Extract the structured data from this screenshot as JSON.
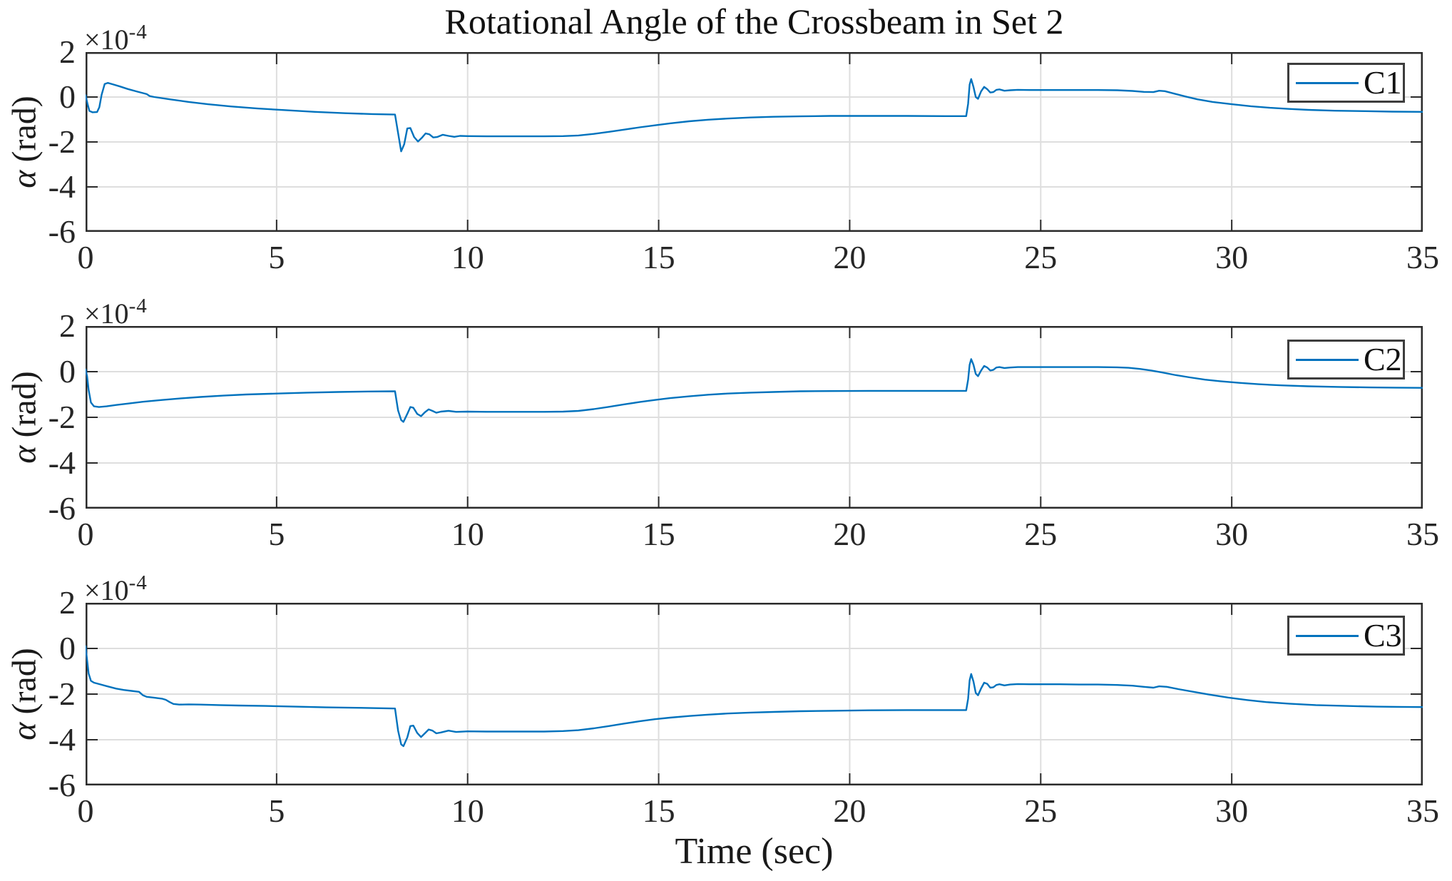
{
  "colors": {
    "line": "#0072BD",
    "grid": "#dedede",
    "axis": "#2b2b2b",
    "text": "#1a1a1a"
  },
  "chart_data": {
    "type": "line",
    "title": "Rotational Angle of the Crossbeam in Set 2",
    "xlabel": "Time (sec)",
    "ylabel": "α (rad)",
    "ylabel_parts": {
      "alpha": "α",
      "unit": "(rad)"
    },
    "y_exponent": {
      "base": "×10",
      "power": "-4"
    },
    "y_units": "values expressed in 1e-4 rad",
    "xlim": [
      0,
      35
    ],
    "ylim": [
      -6,
      2
    ],
    "xticks": [
      0,
      5,
      10,
      15,
      20,
      25,
      30,
      35
    ],
    "yticks": [
      2,
      0,
      -2,
      -4,
      -6
    ],
    "grid": true,
    "legend_position": "top-right",
    "subplots": [
      {
        "name": "C1",
        "points": [
          [
            0,
            0.08
          ],
          [
            0.05,
            -0.3
          ],
          [
            0.1,
            -0.62
          ],
          [
            0.18,
            -0.68
          ],
          [
            0.3,
            -0.67
          ],
          [
            0.36,
            -0.45
          ],
          [
            0.42,
            0.1
          ],
          [
            0.5,
            0.58
          ],
          [
            0.58,
            0.63
          ],
          [
            0.7,
            0.57
          ],
          [
            0.9,
            0.47
          ],
          [
            1.1,
            0.36
          ],
          [
            1.35,
            0.24
          ],
          [
            1.6,
            0.13
          ],
          [
            1.68,
            0.04
          ],
          [
            1.8,
            0
          ],
          [
            2.2,
            -0.1
          ],
          [
            2.7,
            -0.22
          ],
          [
            3.2,
            -0.32
          ],
          [
            3.8,
            -0.42
          ],
          [
            4.5,
            -0.51
          ],
          [
            5.2,
            -0.58
          ],
          [
            6,
            -0.66
          ],
          [
            6.8,
            -0.72
          ],
          [
            7.5,
            -0.76
          ],
          [
            8.1,
            -0.78
          ],
          [
            8.18,
            -1.6
          ],
          [
            8.26,
            -2.42
          ],
          [
            8.34,
            -2.1
          ],
          [
            8.42,
            -1.4
          ],
          [
            8.5,
            -1.38
          ],
          [
            8.6,
            -1.78
          ],
          [
            8.7,
            -1.98
          ],
          [
            8.8,
            -1.82
          ],
          [
            8.9,
            -1.62
          ],
          [
            9,
            -1.66
          ],
          [
            9.1,
            -1.8
          ],
          [
            9.2,
            -1.78
          ],
          [
            9.35,
            -1.68
          ],
          [
            9.5,
            -1.73
          ],
          [
            9.65,
            -1.77
          ],
          [
            9.8,
            -1.73
          ],
          [
            10,
            -1.74
          ],
          [
            10.5,
            -1.75
          ],
          [
            11,
            -1.75
          ],
          [
            11.5,
            -1.75
          ],
          [
            12,
            -1.75
          ],
          [
            12.5,
            -1.74
          ],
          [
            12.9,
            -1.71
          ],
          [
            13.3,
            -1.64
          ],
          [
            13.7,
            -1.55
          ],
          [
            14.1,
            -1.45
          ],
          [
            14.5,
            -1.35
          ],
          [
            14.9,
            -1.26
          ],
          [
            15.3,
            -1.17
          ],
          [
            15.8,
            -1.08
          ],
          [
            16.3,
            -1.01
          ],
          [
            16.8,
            -0.96
          ],
          [
            17.4,
            -0.91
          ],
          [
            18,
            -0.88
          ],
          [
            18.7,
            -0.86
          ],
          [
            19.5,
            -0.84
          ],
          [
            20.5,
            -0.84
          ],
          [
            21.5,
            -0.84
          ],
          [
            22.5,
            -0.85
          ],
          [
            23.05,
            -0.85
          ],
          [
            23.1,
            -0.3
          ],
          [
            23.14,
            0.55
          ],
          [
            23.18,
            0.8
          ],
          [
            23.24,
            0.45
          ],
          [
            23.3,
            0
          ],
          [
            23.36,
            -0.08
          ],
          [
            23.44,
            0.25
          ],
          [
            23.52,
            0.45
          ],
          [
            23.6,
            0.35
          ],
          [
            23.68,
            0.2
          ],
          [
            23.76,
            0.22
          ],
          [
            23.84,
            0.32
          ],
          [
            23.92,
            0.34
          ],
          [
            24.05,
            0.28
          ],
          [
            24.2,
            0.3
          ],
          [
            24.4,
            0.32
          ],
          [
            24.7,
            0.31
          ],
          [
            25,
            0.31
          ],
          [
            25.5,
            0.31
          ],
          [
            26,
            0.31
          ],
          [
            26.5,
            0.31
          ],
          [
            27,
            0.3
          ],
          [
            27.4,
            0.27
          ],
          [
            27.7,
            0.23
          ],
          [
            27.95,
            0.22
          ],
          [
            28.1,
            0.28
          ],
          [
            28.25,
            0.26
          ],
          [
            28.5,
            0.15
          ],
          [
            28.8,
            0.02
          ],
          [
            29.1,
            -0.1
          ],
          [
            29.5,
            -0.22
          ],
          [
            30,
            -0.32
          ],
          [
            30.5,
            -0.41
          ],
          [
            31,
            -0.48
          ],
          [
            31.5,
            -0.53
          ],
          [
            32,
            -0.57
          ],
          [
            32.7,
            -0.61
          ],
          [
            33.5,
            -0.63
          ],
          [
            34.2,
            -0.65
          ],
          [
            35,
            -0.66
          ]
        ]
      },
      {
        "name": "C2",
        "points": [
          [
            0,
            0.1
          ],
          [
            0.04,
            -0.2
          ],
          [
            0.08,
            -0.8
          ],
          [
            0.14,
            -1.35
          ],
          [
            0.22,
            -1.52
          ],
          [
            0.35,
            -1.55
          ],
          [
            0.55,
            -1.52
          ],
          [
            0.8,
            -1.46
          ],
          [
            1.1,
            -1.4
          ],
          [
            1.5,
            -1.32
          ],
          [
            2,
            -1.24
          ],
          [
            2.5,
            -1.17
          ],
          [
            3,
            -1.11
          ],
          [
            3.6,
            -1.05
          ],
          [
            4.2,
            -1
          ],
          [
            5,
            -0.96
          ],
          [
            5.8,
            -0.92
          ],
          [
            6.6,
            -0.89
          ],
          [
            7.4,
            -0.87
          ],
          [
            8.1,
            -0.86
          ],
          [
            8.18,
            -1.7
          ],
          [
            8.26,
            -2.12
          ],
          [
            8.32,
            -2.2
          ],
          [
            8.42,
            -1.85
          ],
          [
            8.5,
            -1.55
          ],
          [
            8.58,
            -1.58
          ],
          [
            8.68,
            -1.85
          ],
          [
            8.78,
            -1.95
          ],
          [
            8.88,
            -1.78
          ],
          [
            8.98,
            -1.65
          ],
          [
            9.08,
            -1.72
          ],
          [
            9.18,
            -1.8
          ],
          [
            9.3,
            -1.75
          ],
          [
            9.5,
            -1.72
          ],
          [
            9.7,
            -1.76
          ],
          [
            10,
            -1.75
          ],
          [
            10.5,
            -1.76
          ],
          [
            11,
            -1.76
          ],
          [
            11.5,
            -1.76
          ],
          [
            12,
            -1.76
          ],
          [
            12.5,
            -1.75
          ],
          [
            12.9,
            -1.72
          ],
          [
            13.3,
            -1.64
          ],
          [
            13.7,
            -1.54
          ],
          [
            14.1,
            -1.43
          ],
          [
            14.5,
            -1.33
          ],
          [
            14.9,
            -1.24
          ],
          [
            15.3,
            -1.16
          ],
          [
            15.8,
            -1.08
          ],
          [
            16.3,
            -1.01
          ],
          [
            16.8,
            -0.96
          ],
          [
            17.4,
            -0.92
          ],
          [
            18,
            -0.89
          ],
          [
            18.7,
            -0.86
          ],
          [
            19.5,
            -0.85
          ],
          [
            20.5,
            -0.84
          ],
          [
            21.5,
            -0.84
          ],
          [
            22.5,
            -0.84
          ],
          [
            23.05,
            -0.84
          ],
          [
            23.1,
            -0.35
          ],
          [
            23.14,
            0.3
          ],
          [
            23.18,
            0.55
          ],
          [
            23.24,
            0.3
          ],
          [
            23.3,
            -0.1
          ],
          [
            23.36,
            -0.2
          ],
          [
            23.44,
            0.05
          ],
          [
            23.52,
            0.25
          ],
          [
            23.6,
            0.18
          ],
          [
            23.68,
            0.05
          ],
          [
            23.76,
            0.08
          ],
          [
            23.84,
            0.18
          ],
          [
            23.92,
            0.2
          ],
          [
            24.05,
            0.16
          ],
          [
            24.2,
            0.18
          ],
          [
            24.4,
            0.2
          ],
          [
            24.7,
            0.2
          ],
          [
            25,
            0.2
          ],
          [
            25.5,
            0.2
          ],
          [
            26,
            0.2
          ],
          [
            26.5,
            0.2
          ],
          [
            27,
            0.19
          ],
          [
            27.3,
            0.17
          ],
          [
            27.6,
            0.12
          ],
          [
            27.9,
            0.05
          ],
          [
            28.2,
            -0.04
          ],
          [
            28.5,
            -0.14
          ],
          [
            28.9,
            -0.25
          ],
          [
            29.3,
            -0.35
          ],
          [
            29.7,
            -0.42
          ],
          [
            30.2,
            -0.49
          ],
          [
            30.7,
            -0.55
          ],
          [
            31.3,
            -0.6
          ],
          [
            32,
            -0.64
          ],
          [
            32.8,
            -0.67
          ],
          [
            33.6,
            -0.69
          ],
          [
            34.3,
            -0.7
          ],
          [
            35,
            -0.71
          ]
        ]
      },
      {
        "name": "C3",
        "points": [
          [
            0,
            0.1
          ],
          [
            0.04,
            -0.5
          ],
          [
            0.08,
            -1.1
          ],
          [
            0.14,
            -1.42
          ],
          [
            0.22,
            -1.5
          ],
          [
            0.35,
            -1.56
          ],
          [
            0.55,
            -1.65
          ],
          [
            0.8,
            -1.76
          ],
          [
            1,
            -1.82
          ],
          [
            1.2,
            -1.86
          ],
          [
            1.4,
            -1.9
          ],
          [
            1.5,
            -2.05
          ],
          [
            1.6,
            -2.12
          ],
          [
            1.8,
            -2.16
          ],
          [
            2,
            -2.2
          ],
          [
            2.1,
            -2.25
          ],
          [
            2.2,
            -2.35
          ],
          [
            2.3,
            -2.43
          ],
          [
            2.45,
            -2.46
          ],
          [
            2.7,
            -2.45
          ],
          [
            3,
            -2.46
          ],
          [
            3.5,
            -2.48
          ],
          [
            4,
            -2.5
          ],
          [
            4.7,
            -2.52
          ],
          [
            5.5,
            -2.55
          ],
          [
            6.3,
            -2.58
          ],
          [
            7.1,
            -2.6
          ],
          [
            8.1,
            -2.63
          ],
          [
            8.18,
            -3.6
          ],
          [
            8.26,
            -4.2
          ],
          [
            8.32,
            -4.28
          ],
          [
            8.42,
            -3.9
          ],
          [
            8.5,
            -3.4
          ],
          [
            8.58,
            -3.38
          ],
          [
            8.68,
            -3.7
          ],
          [
            8.78,
            -3.88
          ],
          [
            8.88,
            -3.72
          ],
          [
            8.98,
            -3.55
          ],
          [
            9.08,
            -3.6
          ],
          [
            9.18,
            -3.72
          ],
          [
            9.3,
            -3.68
          ],
          [
            9.5,
            -3.6
          ],
          [
            9.7,
            -3.66
          ],
          [
            10,
            -3.63
          ],
          [
            10.5,
            -3.64
          ],
          [
            11,
            -3.64
          ],
          [
            11.5,
            -3.64
          ],
          [
            12,
            -3.64
          ],
          [
            12.5,
            -3.62
          ],
          [
            12.9,
            -3.58
          ],
          [
            13.3,
            -3.5
          ],
          [
            13.7,
            -3.4
          ],
          [
            14.1,
            -3.29
          ],
          [
            14.5,
            -3.19
          ],
          [
            14.9,
            -3.1
          ],
          [
            15.3,
            -3.03
          ],
          [
            15.8,
            -2.96
          ],
          [
            16.3,
            -2.9
          ],
          [
            16.8,
            -2.85
          ],
          [
            17.4,
            -2.81
          ],
          [
            18,
            -2.78
          ],
          [
            18.7,
            -2.75
          ],
          [
            19.5,
            -2.73
          ],
          [
            20.5,
            -2.71
          ],
          [
            21.5,
            -2.7
          ],
          [
            22.5,
            -2.7
          ],
          [
            23.05,
            -2.7
          ],
          [
            23.1,
            -2.2
          ],
          [
            23.14,
            -1.4
          ],
          [
            23.18,
            -1.12
          ],
          [
            23.24,
            -1.45
          ],
          [
            23.3,
            -1.95
          ],
          [
            23.36,
            -2.05
          ],
          [
            23.44,
            -1.75
          ],
          [
            23.52,
            -1.5
          ],
          [
            23.6,
            -1.55
          ],
          [
            23.68,
            -1.72
          ],
          [
            23.76,
            -1.7
          ],
          [
            23.84,
            -1.6
          ],
          [
            23.92,
            -1.57
          ],
          [
            24.05,
            -1.62
          ],
          [
            24.2,
            -1.58
          ],
          [
            24.4,
            -1.56
          ],
          [
            24.7,
            -1.57
          ],
          [
            25,
            -1.57
          ],
          [
            25.5,
            -1.57
          ],
          [
            26,
            -1.58
          ],
          [
            26.5,
            -1.58
          ],
          [
            27,
            -1.6
          ],
          [
            27.4,
            -1.63
          ],
          [
            27.7,
            -1.68
          ],
          [
            27.95,
            -1.72
          ],
          [
            28.1,
            -1.66
          ],
          [
            28.3,
            -1.68
          ],
          [
            28.6,
            -1.78
          ],
          [
            29,
            -1.9
          ],
          [
            29.4,
            -2.02
          ],
          [
            29.9,
            -2.15
          ],
          [
            30.4,
            -2.26
          ],
          [
            30.9,
            -2.35
          ],
          [
            31.5,
            -2.42
          ],
          [
            32.2,
            -2.48
          ],
          [
            33,
            -2.52
          ],
          [
            33.8,
            -2.55
          ],
          [
            34.4,
            -2.56
          ],
          [
            35,
            -2.57
          ]
        ]
      }
    ]
  }
}
